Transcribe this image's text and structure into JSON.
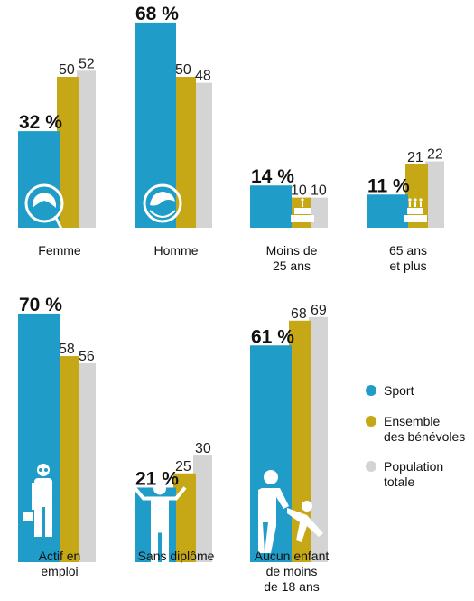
{
  "chart_data": {
    "type": "bar",
    "series": [
      {
        "name": "Sport",
        "color": "#1f9cc8"
      },
      {
        "name": "Ensemble des bénévoles",
        "color": "#c6a816"
      },
      {
        "name": "Population totale",
        "color": "#d4d4d4"
      }
    ],
    "value_suffix": " %",
    "groups": [
      {
        "label": [
          "Femme"
        ],
        "values": [
          32,
          50,
          52
        ],
        "icon": "female-head-icon"
      },
      {
        "label": [
          "Homme"
        ],
        "values": [
          68,
          50,
          48
        ],
        "icon": "male-head-icon"
      },
      {
        "label": [
          "Moins de",
          "25 ans"
        ],
        "values": [
          14,
          10,
          10
        ],
        "icon": "birthday-cake-icon"
      },
      {
        "label": [
          "65 ans",
          "et plus"
        ],
        "values": [
          11,
          21,
          22
        ],
        "icon": "birthday-cake-many-candles-icon"
      },
      {
        "label": [
          "Actif en",
          "emploi"
        ],
        "values": [
          70,
          58,
          56
        ],
        "icon": "worker-with-briefcase-icon"
      },
      {
        "label": [
          "Sans diplôme"
        ],
        "values": [
          21,
          25,
          30
        ],
        "icon": "person-shrugging-icon"
      },
      {
        "label": [
          "Aucun enfant",
          "de moins",
          "de 18 ans"
        ],
        "values": [
          61,
          68,
          69
        ],
        "icon": "adult-with-child-icon"
      }
    ],
    "legend": [
      {
        "label": [
          "Sport"
        ],
        "color": "#1f9cc8"
      },
      {
        "label": [
          "Ensemble",
          "des bénévoles"
        ],
        "color": "#c6a816"
      },
      {
        "label": [
          "Population",
          "totale"
        ],
        "color": "#d4d4d4"
      }
    ],
    "legend_position": "right",
    "grid": false
  }
}
